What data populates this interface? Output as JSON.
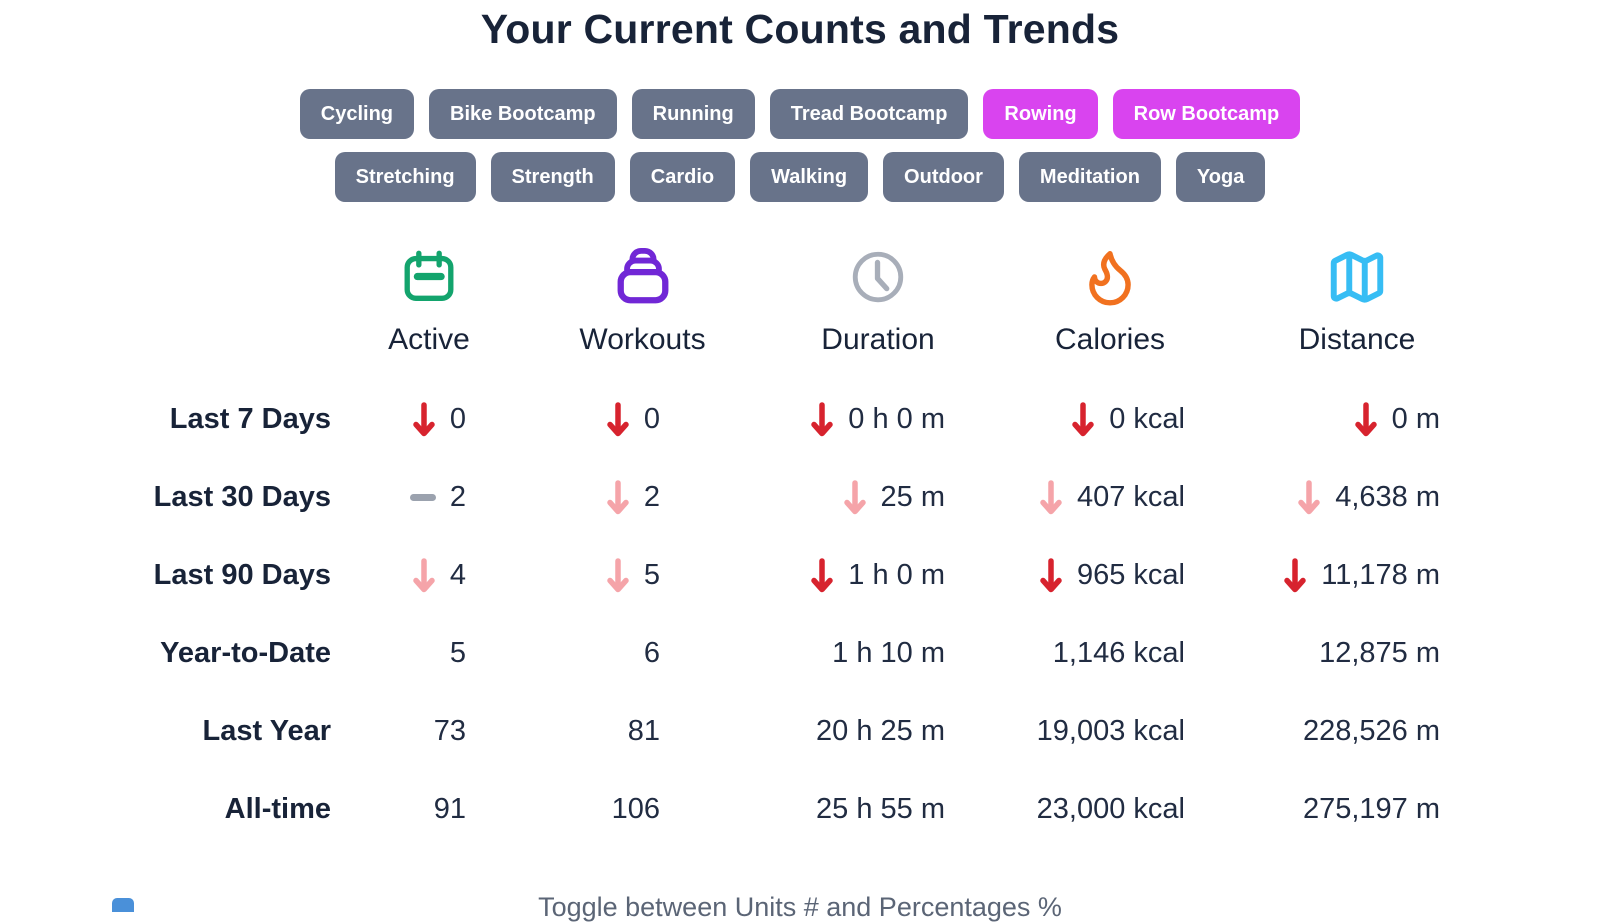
{
  "page": {
    "title": "Your Current Counts and Trends"
  },
  "filters": {
    "colors": {
      "inactive_bg": "#68738a",
      "active_bg": "#d944ef",
      "text": "#ffffff"
    },
    "rows": [
      [
        {
          "label": "Cycling",
          "active": false
        },
        {
          "label": "Bike Bootcamp",
          "active": false
        },
        {
          "label": "Running",
          "active": false
        },
        {
          "label": "Tread Bootcamp",
          "active": false
        },
        {
          "label": "Rowing",
          "active": true
        },
        {
          "label": "Row Bootcamp",
          "active": true
        }
      ],
      [
        {
          "label": "Stretching",
          "active": false
        },
        {
          "label": "Strength",
          "active": false
        },
        {
          "label": "Cardio",
          "active": false
        },
        {
          "label": "Walking",
          "active": false
        },
        {
          "label": "Outdoor",
          "active": false
        },
        {
          "label": "Meditation",
          "active": false
        },
        {
          "label": "Yoga",
          "active": false
        }
      ]
    ]
  },
  "table": {
    "columns": [
      {
        "label": "Active",
        "icon": "calendar-icon",
        "color": "#13a46d"
      },
      {
        "label": "Workouts",
        "icon": "stack-icon",
        "color": "#7127d6"
      },
      {
        "label": "Duration",
        "icon": "clock-icon",
        "color": "#a8aeb9"
      },
      {
        "label": "Calories",
        "icon": "flame-icon",
        "color": "#f1711f"
      },
      {
        "label": "Distance",
        "icon": "map-icon",
        "color": "#37bdf4"
      }
    ],
    "trend_colors": {
      "down": "#d7232e",
      "down_slight": "#f5a4a9",
      "flat": "#9ba2ae"
    },
    "rows": [
      {
        "label": "Last 7 Days",
        "cells": [
          {
            "trend": "down",
            "value": "0"
          },
          {
            "trend": "down",
            "value": "0"
          },
          {
            "trend": "down",
            "value": "0 h 0 m"
          },
          {
            "trend": "down",
            "value": "0 kcal"
          },
          {
            "trend": "down",
            "value": "0 m"
          }
        ]
      },
      {
        "label": "Last 30 Days",
        "cells": [
          {
            "trend": "flat",
            "value": "2"
          },
          {
            "trend": "down_slight",
            "value": "2"
          },
          {
            "trend": "down_slight",
            "value": "25 m"
          },
          {
            "trend": "down_slight",
            "value": "407 kcal"
          },
          {
            "trend": "down_slight",
            "value": "4,638 m"
          }
        ]
      },
      {
        "label": "Last 90 Days",
        "cells": [
          {
            "trend": "down_slight",
            "value": "4"
          },
          {
            "trend": "down_slight",
            "value": "5"
          },
          {
            "trend": "down",
            "value": "1 h 0 m"
          },
          {
            "trend": "down",
            "value": "965 kcal"
          },
          {
            "trend": "down",
            "value": "11,178 m"
          }
        ]
      },
      {
        "label": "Year-to-Date",
        "cells": [
          {
            "trend": null,
            "value": "5"
          },
          {
            "trend": null,
            "value": "6"
          },
          {
            "trend": null,
            "value": "1 h 10 m"
          },
          {
            "trend": null,
            "value": "1,146 kcal"
          },
          {
            "trend": null,
            "value": "12,875 m"
          }
        ]
      },
      {
        "label": "Last Year",
        "cells": [
          {
            "trend": null,
            "value": "73"
          },
          {
            "trend": null,
            "value": "81"
          },
          {
            "trend": null,
            "value": "20 h 25 m"
          },
          {
            "trend": null,
            "value": "19,003 kcal"
          },
          {
            "trend": null,
            "value": "228,526 m"
          }
        ]
      },
      {
        "label": "All-time",
        "cells": [
          {
            "trend": null,
            "value": "91"
          },
          {
            "trend": null,
            "value": "106"
          },
          {
            "trend": null,
            "value": "25 h 55 m"
          },
          {
            "trend": null,
            "value": "23,000 kcal"
          },
          {
            "trend": null,
            "value": "275,197 m"
          }
        ]
      }
    ]
  },
  "footer": {
    "text": "Toggle between Units # and Percentages %",
    "partial_icon": {
      "name": "partial-blue-icon",
      "color": "#4a90d9"
    }
  }
}
